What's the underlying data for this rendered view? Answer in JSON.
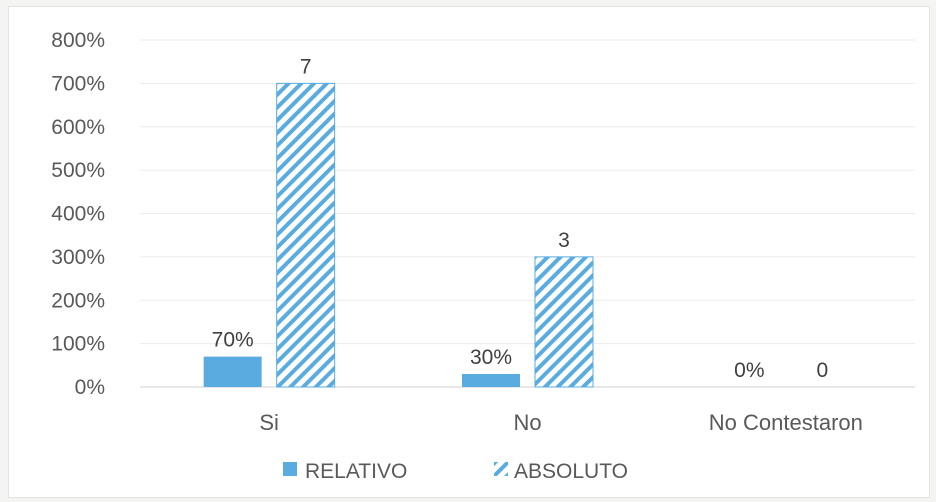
{
  "chart_data": {
    "type": "bar",
    "categories": [
      "Si",
      "No",
      "No Contestaron"
    ],
    "series": [
      {
        "name": "RELATIVO",
        "values": [
          70,
          30,
          0
        ],
        "labels": [
          "70%",
          "30%",
          "0%"
        ],
        "color": "#5aace0",
        "pattern": "solid"
      },
      {
        "name": "ABSOLUTO",
        "values": [
          700,
          300,
          0
        ],
        "labels": [
          "7",
          "3",
          "0"
        ],
        "color": "#5aace0",
        "pattern": "diagonal-hatch"
      }
    ],
    "y_ticks": [
      "0%",
      "100%",
      "200%",
      "300%",
      "400%",
      "500%",
      "600%",
      "700%",
      "800%"
    ],
    "ylim": [
      0,
      800
    ],
    "grid": true,
    "legend_position": "bottom"
  }
}
